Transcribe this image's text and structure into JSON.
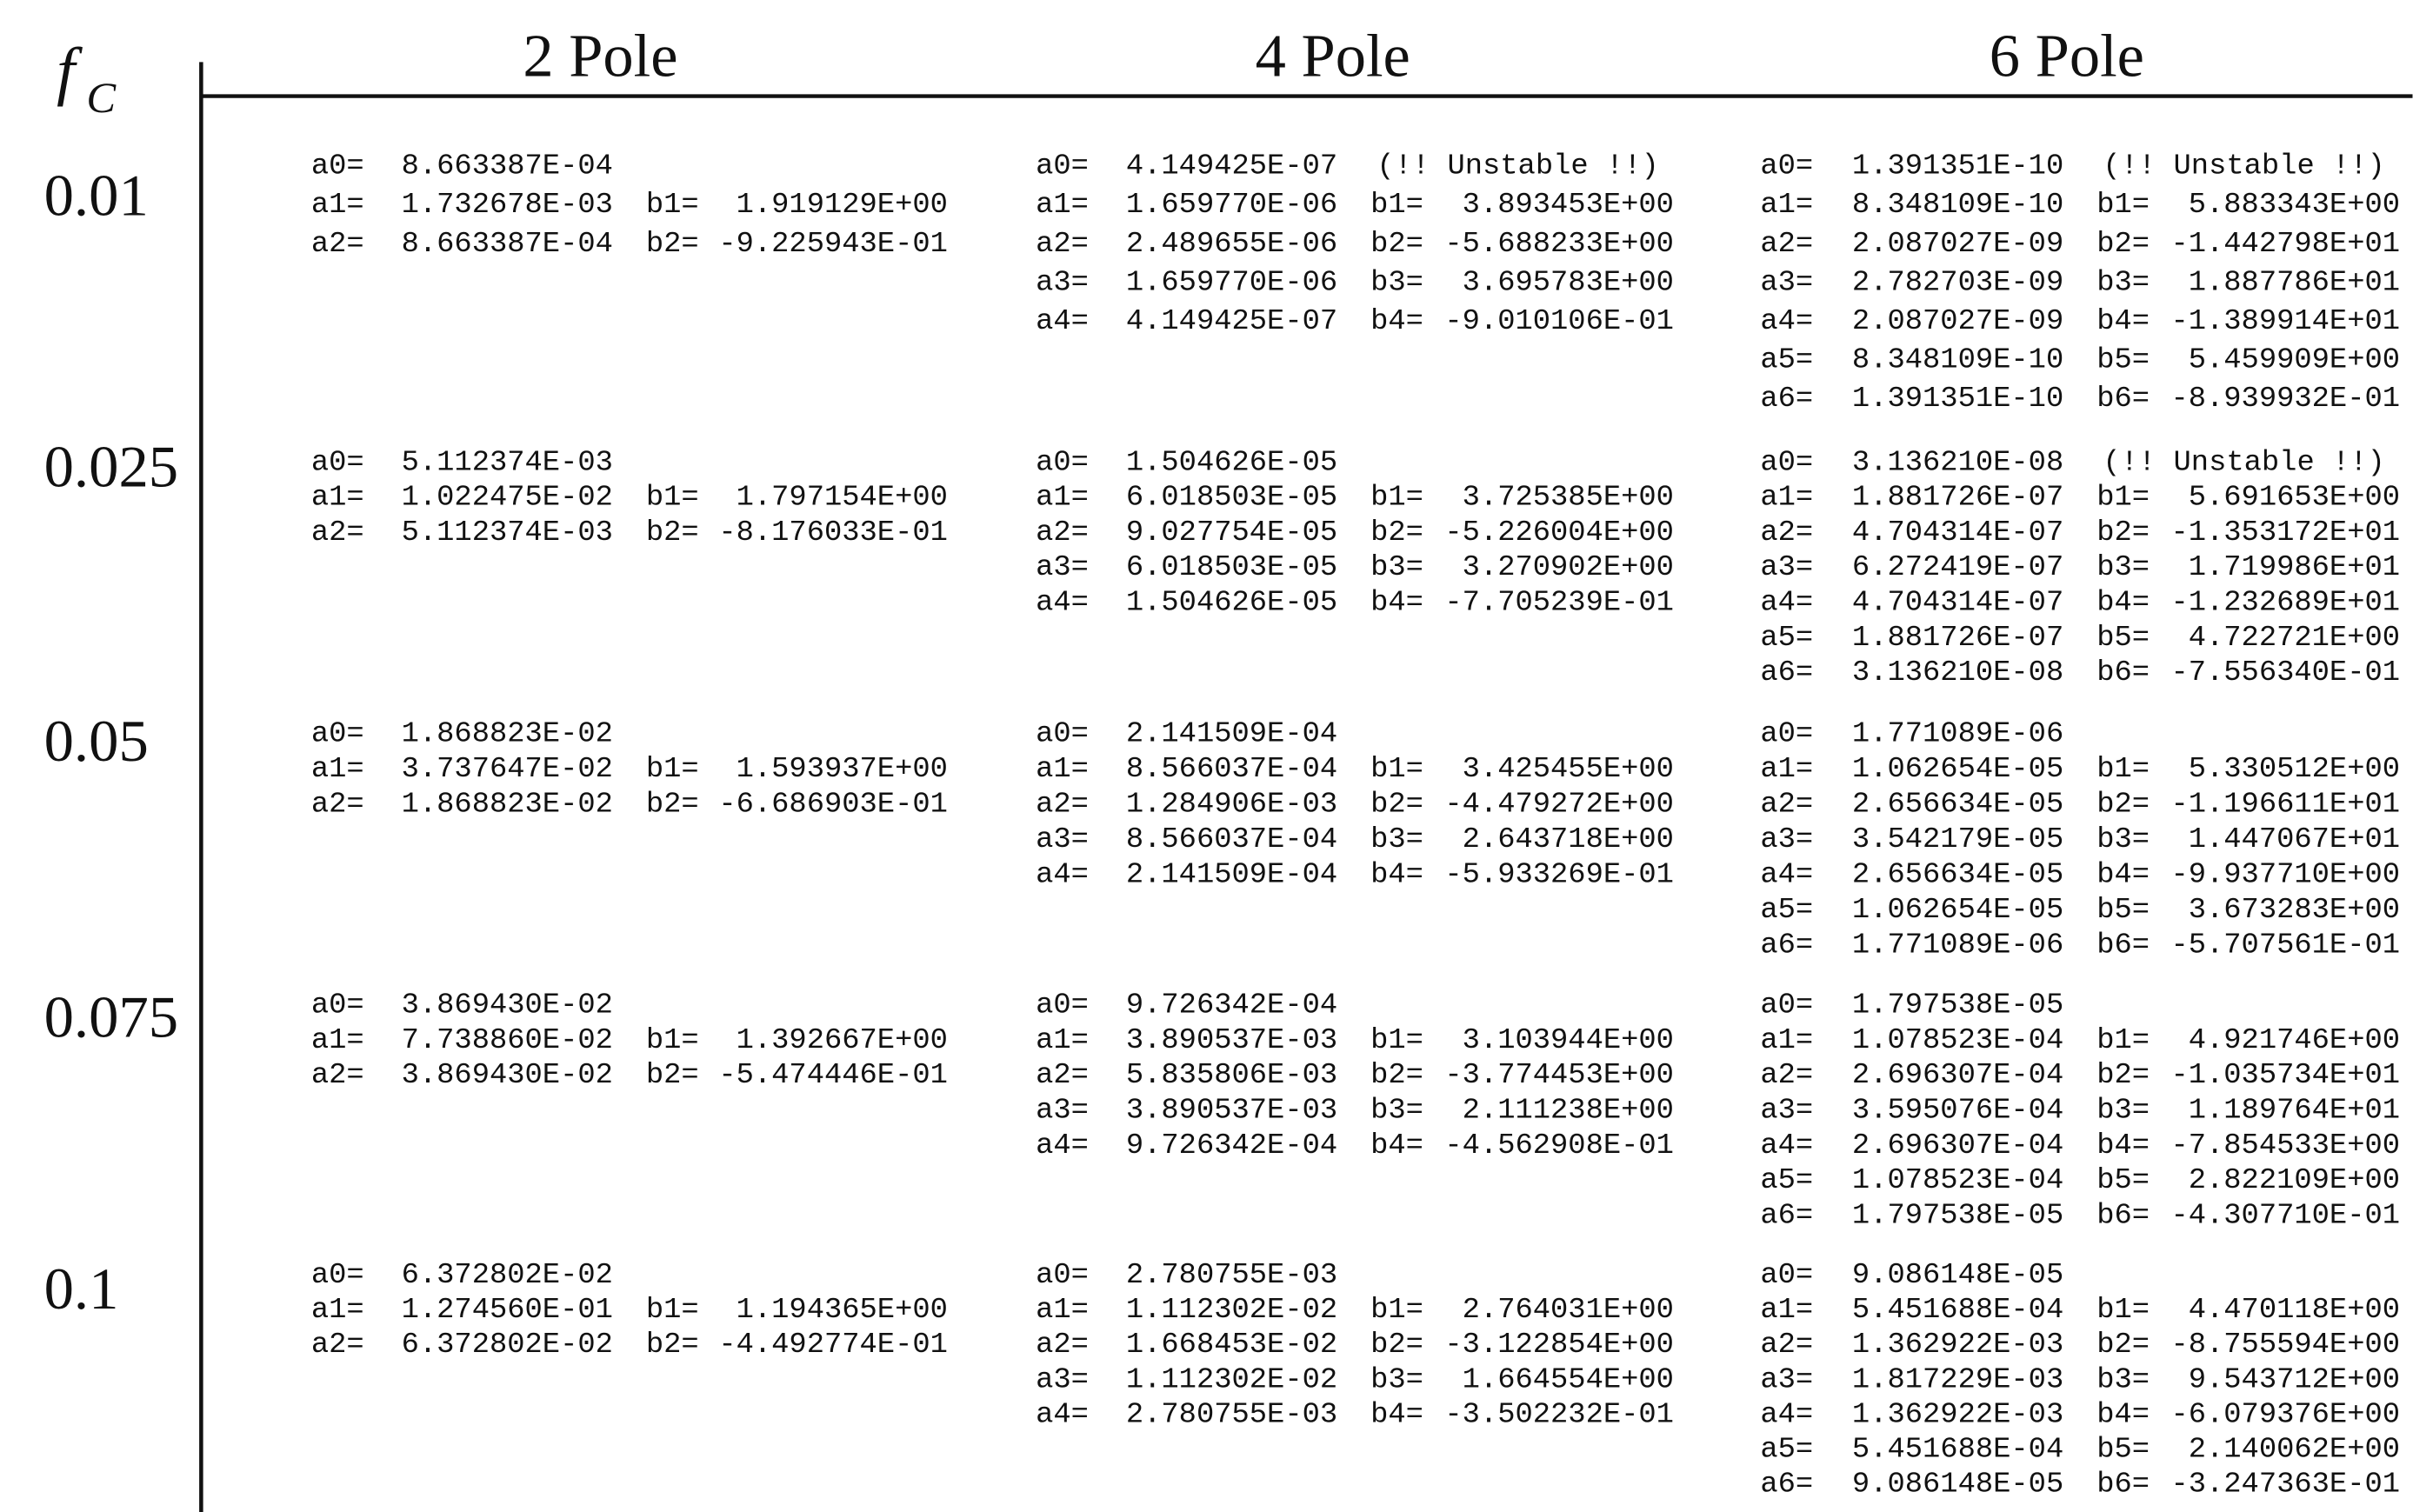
{
  "header": {
    "fc_symbol": "f",
    "fc_subscript": "C",
    "columns": [
      "2 Pole",
      "4 Pole",
      "6 Pole"
    ]
  },
  "rows": [
    {
      "fc": "0.01",
      "cells": [
        {
          "lines": [
            [
              "a0=",
              "8.663387E-04"
            ],
            [
              "a1=",
              "1.732678E-03",
              "b1=",
              "1.919129E+00"
            ],
            [
              "a2=",
              "8.663387E-04",
              "b2=",
              "-9.225943E-01"
            ]
          ]
        },
        {
          "note": "(!! Unstable !!)",
          "lines": [
            [
              "a0=",
              "4.149425E-07"
            ],
            [
              "a1=",
              "1.659770E-06",
              "b1=",
              "3.893453E+00"
            ],
            [
              "a2=",
              "2.489655E-06",
              "b2=",
              "-5.688233E+00"
            ],
            [
              "a3=",
              "1.659770E-06",
              "b3=",
              "3.695783E+00"
            ],
            [
              "a4=",
              "4.149425E-07",
              "b4=",
              "-9.010106E-01"
            ]
          ]
        },
        {
          "note": "(!! Unstable !!)",
          "lines": [
            [
              "a0=",
              "1.391351E-10"
            ],
            [
              "a1=",
              "8.348109E-10",
              "b1=",
              "5.883343E+00"
            ],
            [
              "a2=",
              "2.087027E-09",
              "b2=",
              "-1.442798E+01"
            ],
            [
              "a3=",
              "2.782703E-09",
              "b3=",
              "1.887786E+01"
            ],
            [
              "a4=",
              "2.087027E-09",
              "b4=",
              "-1.389914E+01"
            ],
            [
              "a5=",
              "8.348109E-10",
              "b5=",
              "5.459909E+00"
            ],
            [
              "a6=",
              "1.391351E-10",
              "b6=",
              "-8.939932E-01"
            ]
          ]
        }
      ]
    },
    {
      "fc": "0.025",
      "cells": [
        {
          "lines": [
            [
              "a0=",
              "5.112374E-03"
            ],
            [
              "a1=",
              "1.022475E-02",
              "b1=",
              "1.797154E+00"
            ],
            [
              "a2=",
              "5.112374E-03",
              "b2=",
              "-8.176033E-01"
            ]
          ]
        },
        {
          "lines": [
            [
              "a0=",
              "1.504626E-05"
            ],
            [
              "a1=",
              "6.018503E-05",
              "b1=",
              "3.725385E+00"
            ],
            [
              "a2=",
              "9.027754E-05",
              "b2=",
              "-5.226004E+00"
            ],
            [
              "a3=",
              "6.018503E-05",
              "b3=",
              "3.270902E+00"
            ],
            [
              "a4=",
              "1.504626E-05",
              "b4=",
              "-7.705239E-01"
            ]
          ]
        },
        {
          "note": "(!! Unstable !!)",
          "lines": [
            [
              "a0=",
              "3.136210E-08"
            ],
            [
              "a1=",
              "1.881726E-07",
              "b1=",
              "5.691653E+00"
            ],
            [
              "a2=",
              "4.704314E-07",
              "b2=",
              "-1.353172E+01"
            ],
            [
              "a3=",
              "6.272419E-07",
              "b3=",
              "1.719986E+01"
            ],
            [
              "a4=",
              "4.704314E-07",
              "b4=",
              "-1.232689E+01"
            ],
            [
              "a5=",
              "1.881726E-07",
              "b5=",
              "4.722721E+00"
            ],
            [
              "a6=",
              "3.136210E-08",
              "b6=",
              "-7.556340E-01"
            ]
          ]
        }
      ]
    },
    {
      "fc": "0.05",
      "cells": [
        {
          "lines": [
            [
              "a0=",
              "1.868823E-02"
            ],
            [
              "a1=",
              "3.737647E-02",
              "b1=",
              "1.593937E+00"
            ],
            [
              "a2=",
              "1.868823E-02",
              "b2=",
              "-6.686903E-01"
            ]
          ]
        },
        {
          "lines": [
            [
              "a0=",
              "2.141509E-04"
            ],
            [
              "a1=",
              "8.566037E-04",
              "b1=",
              "3.425455E+00"
            ],
            [
              "a2=",
              "1.284906E-03",
              "b2=",
              "-4.479272E+00"
            ],
            [
              "a3=",
              "8.566037E-04",
              "b3=",
              "2.643718E+00"
            ],
            [
              "a4=",
              "2.141509E-04",
              "b4=",
              "-5.933269E-01"
            ]
          ]
        },
        {
          "lines": [
            [
              "a0=",
              "1.771089E-06"
            ],
            [
              "a1=",
              "1.062654E-05",
              "b1=",
              "5.330512E+00"
            ],
            [
              "a2=",
              "2.656634E-05",
              "b2=",
              "-1.196611E+01"
            ],
            [
              "a3=",
              "3.542179E-05",
              "b3=",
              "1.447067E+01"
            ],
            [
              "a4=",
              "2.656634E-05",
              "b4=",
              "-9.937710E+00"
            ],
            [
              "a5=",
              "1.062654E-05",
              "b5=",
              "3.673283E+00"
            ],
            [
              "a6=",
              "1.771089E-06",
              "b6=",
              "-5.707561E-01"
            ]
          ]
        }
      ]
    },
    {
      "fc": "0.075",
      "cells": [
        {
          "lines": [
            [
              "a0=",
              "3.869430E-02"
            ],
            [
              "a1=",
              "7.738860E-02",
              "b1=",
              "1.392667E+00"
            ],
            [
              "a2=",
              "3.869430E-02",
              "b2=",
              "-5.474446E-01"
            ]
          ]
        },
        {
          "lines": [
            [
              "a0=",
              "9.726342E-04"
            ],
            [
              "a1=",
              "3.890537E-03",
              "b1=",
              "3.103944E+00"
            ],
            [
              "a2=",
              "5.835806E-03",
              "b2=",
              "-3.774453E+00"
            ],
            [
              "a3=",
              "3.890537E-03",
              "b3=",
              "2.111238E+00"
            ],
            [
              "a4=",
              "9.726342E-04",
              "b4=",
              "-4.562908E-01"
            ]
          ]
        },
        {
          "lines": [
            [
              "a0=",
              "1.797538E-05"
            ],
            [
              "a1=",
              "1.078523E-04",
              "b1=",
              "4.921746E+00"
            ],
            [
              "a2=",
              "2.696307E-04",
              "b2=",
              "-1.035734E+01"
            ],
            [
              "a3=",
              "3.595076E-04",
              "b3=",
              "1.189764E+01"
            ],
            [
              "a4=",
              "2.696307E-04",
              "b4=",
              "-7.854533E+00"
            ],
            [
              "a5=",
              "1.078523E-04",
              "b5=",
              "2.822109E+00"
            ],
            [
              "a6=",
              "1.797538E-05",
              "b6=",
              "-4.307710E-01"
            ]
          ]
        }
      ]
    },
    {
      "fc": "0.1",
      "cells": [
        {
          "lines": [
            [
              "a0=",
              "6.372802E-02"
            ],
            [
              "a1=",
              "1.274560E-01",
              "b1=",
              "1.194365E+00"
            ],
            [
              "a2=",
              "6.372802E-02",
              "b2=",
              "-4.492774E-01"
            ]
          ]
        },
        {
          "lines": [
            [
              "a0=",
              "2.780755E-03"
            ],
            [
              "a1=",
              "1.112302E-02",
              "b1=",
              "2.764031E+00"
            ],
            [
              "a2=",
              "1.668453E-02",
              "b2=",
              "-3.122854E+00"
            ],
            [
              "a3=",
              "1.112302E-02",
              "b3=",
              "1.664554E+00"
            ],
            [
              "a4=",
              "2.780755E-03",
              "b4=",
              "-3.502232E-01"
            ]
          ]
        },
        {
          "lines": [
            [
              "a0=",
              "9.086148E-05"
            ],
            [
              "a1=",
              "5.451688E-04",
              "b1=",
              "4.470118E+00"
            ],
            [
              "a2=",
              "1.362922E-03",
              "b2=",
              "-8.755594E+00"
            ],
            [
              "a3=",
              "1.817229E-03",
              "b3=",
              "9.543712E+00"
            ],
            [
              "a4=",
              "1.362922E-03",
              "b4=",
              "-6.079376E+00"
            ],
            [
              "a5=",
              "5.451688E-04",
              "b5=",
              "2.140062E+00"
            ],
            [
              "a6=",
              "9.086148E-05",
              "b6=",
              "-3.247363E-01"
            ]
          ]
        }
      ]
    }
  ]
}
